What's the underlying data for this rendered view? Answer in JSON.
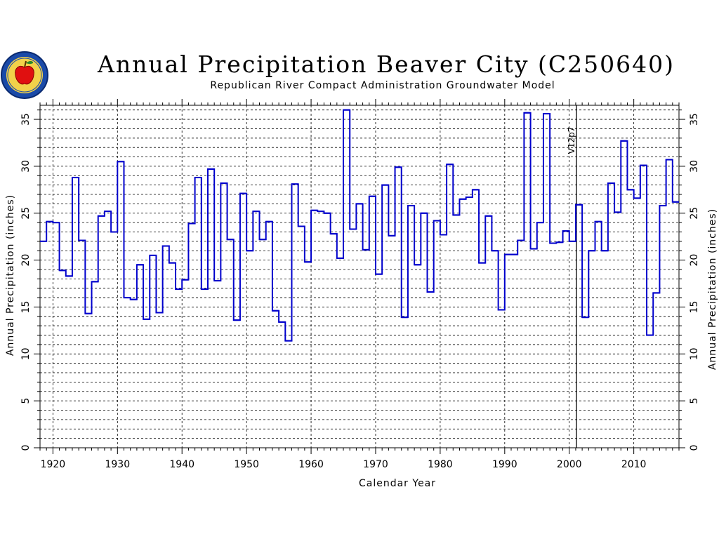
{
  "chart_data": {
    "type": "line",
    "title": "Annual Precipitation Beaver City (C250640)",
    "subtitle": "Republican River Compact Administration Groundwater Model",
    "xlabel": "Calendar Year",
    "ylabel_left": "Annual Precipitation (inches)",
    "ylabel_right": "Annual Precipitation (inches)",
    "xlim": [
      1918,
      2017
    ],
    "ylim": [
      0,
      36.5
    ],
    "x_ticks": [
      1920,
      1930,
      1940,
      1950,
      1960,
      1970,
      1980,
      1990,
      2000,
      2010
    ],
    "y_ticks": [
      0,
      5,
      10,
      15,
      20,
      25,
      30,
      35
    ],
    "grid": true,
    "series_color": "#0000cc",
    "marker": {
      "year": 2001,
      "label": "V12p7"
    },
    "series": [
      {
        "x": [
          1918,
          1919,
          1920,
          1921,
          1922,
          1923,
          1924,
          1925,
          1926,
          1927,
          1928,
          1929,
          1930,
          1931,
          1932,
          1933,
          1934,
          1935,
          1936,
          1937,
          1938,
          1939,
          1940,
          1941,
          1942,
          1943,
          1944,
          1945,
          1946,
          1947,
          1948,
          1949,
          1950,
          1951,
          1952,
          1953,
          1954,
          1955,
          1956,
          1957,
          1958,
          1959,
          1960,
          1961,
          1962,
          1963,
          1964,
          1965,
          1966,
          1967,
          1968,
          1969,
          1970,
          1971,
          1972,
          1973,
          1974,
          1975,
          1976,
          1977,
          1978,
          1979,
          1980,
          1981,
          1982,
          1983,
          1984,
          1985,
          1986,
          1987,
          1988,
          1989,
          1990,
          1991,
          1992,
          1993,
          1994,
          1995,
          1996,
          1997,
          1998,
          1999,
          2000,
          2001,
          2002,
          2003,
          2004,
          2005,
          2006,
          2007,
          2008,
          2009,
          2010,
          2011,
          2012,
          2013,
          2014,
          2015,
          2016
        ],
        "values": [
          22.0,
          24.1,
          24.0,
          18.9,
          18.3,
          28.8,
          22.1,
          14.3,
          17.7,
          24.7,
          25.2,
          23.0,
          30.5,
          16.0,
          15.8,
          19.5,
          13.7,
          20.5,
          14.4,
          21.5,
          19.7,
          16.9,
          17.9,
          23.9,
          28.8,
          16.9,
          29.7,
          17.8,
          28.2,
          22.2,
          13.6,
          27.1,
          21.0,
          25.2,
          22.2,
          24.1,
          14.6,
          13.4,
          11.4,
          28.1,
          23.6,
          19.8,
          25.3,
          25.2,
          25.0,
          22.8,
          20.2,
          36.0,
          23.3,
          26.0,
          21.1,
          26.8,
          18.5,
          28.0,
          22.6,
          29.9,
          13.9,
          25.8,
          19.5,
          25.0,
          16.6,
          24.2,
          22.7,
          30.2,
          24.8,
          26.5,
          26.7,
          27.5,
          19.7,
          24.7,
          21.0,
          14.7,
          20.6,
          20.6,
          22.1,
          35.7,
          21.2,
          24.0,
          35.6,
          21.8,
          21.9,
          23.1,
          22.0,
          25.9,
          13.9,
          21.0,
          24.1,
          21.0,
          28.2,
          25.1,
          32.7,
          27.5,
          26.6,
          30.1,
          12.0,
          16.5,
          25.8,
          30.7,
          26.2
        ]
      }
    ]
  }
}
